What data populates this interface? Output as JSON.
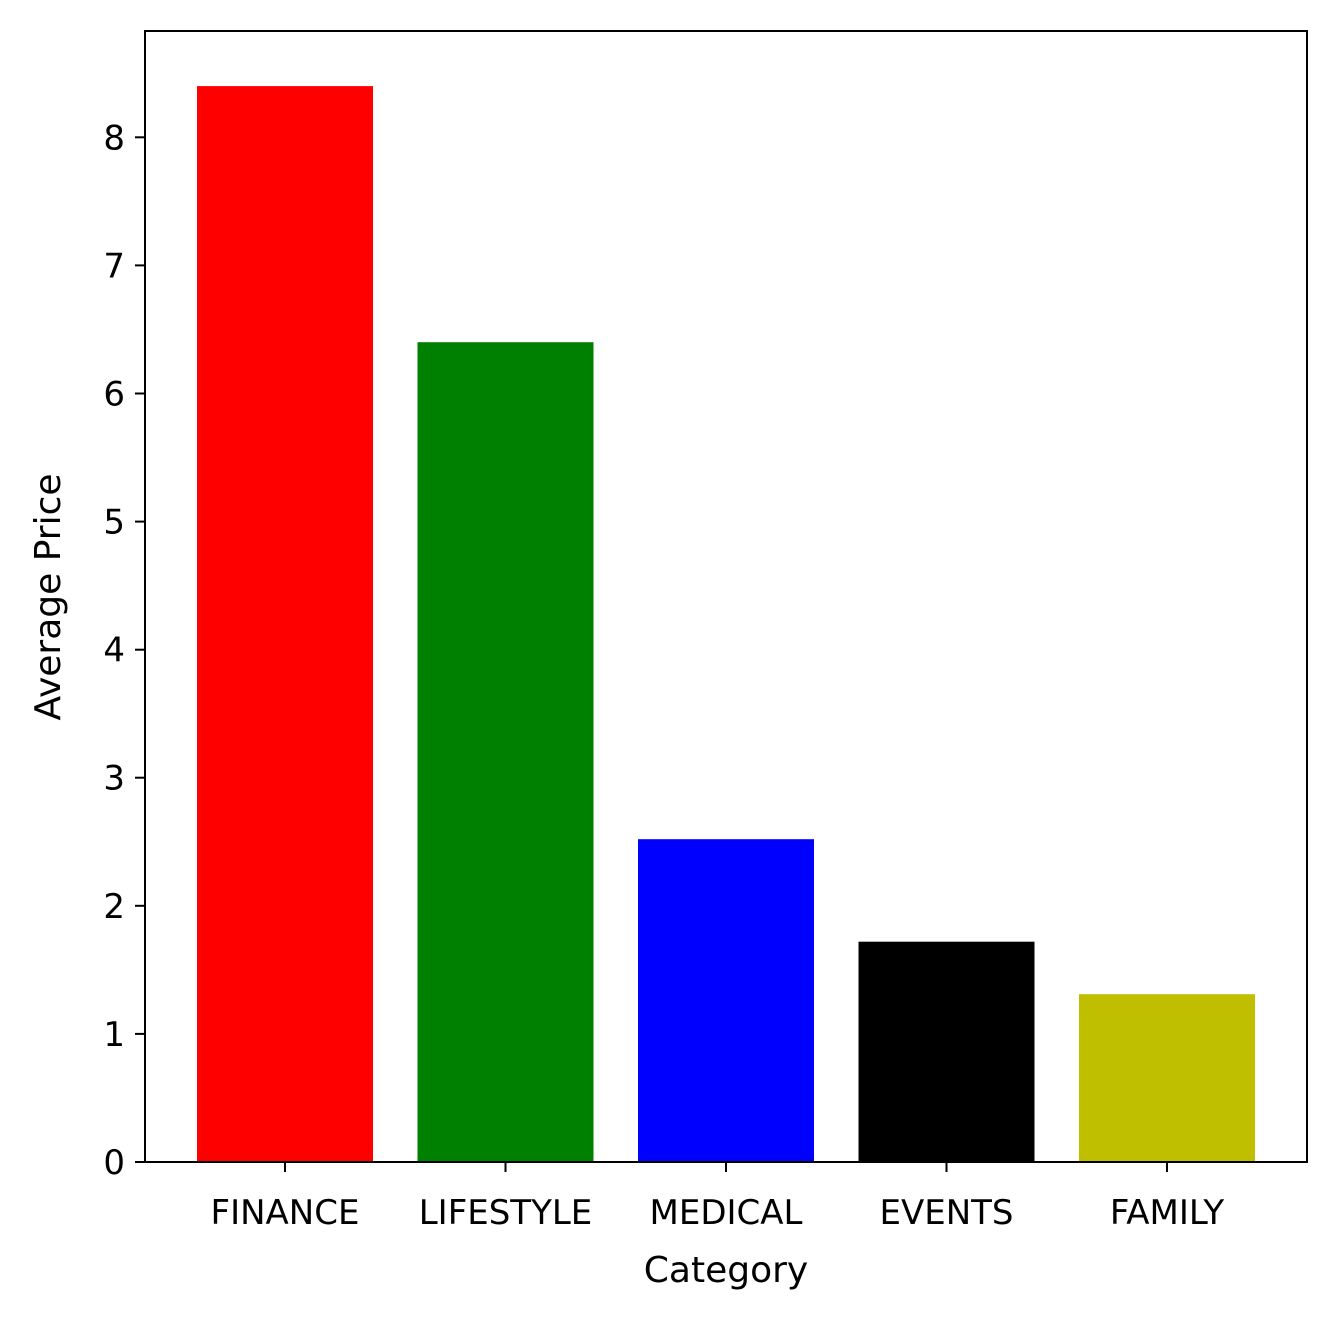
{
  "chart_data": {
    "type": "bar",
    "title": "",
    "xlabel": "Category",
    "ylabel": "Average Price",
    "categories": [
      "FINANCE",
      "LIFESTYLE",
      "MEDICAL",
      "EVENTS",
      "FAMILY"
    ],
    "values": [
      8.4,
      6.4,
      2.52,
      1.72,
      1.31
    ],
    "colors": [
      "#ff0000",
      "#008000",
      "#0000ff",
      "#000000",
      "#bfbf00"
    ],
    "ylim": [
      0,
      8.83
    ],
    "yticks": [
      0,
      1,
      2,
      3,
      4,
      5,
      6,
      7,
      8
    ],
    "grid": false,
    "legend": "none"
  }
}
